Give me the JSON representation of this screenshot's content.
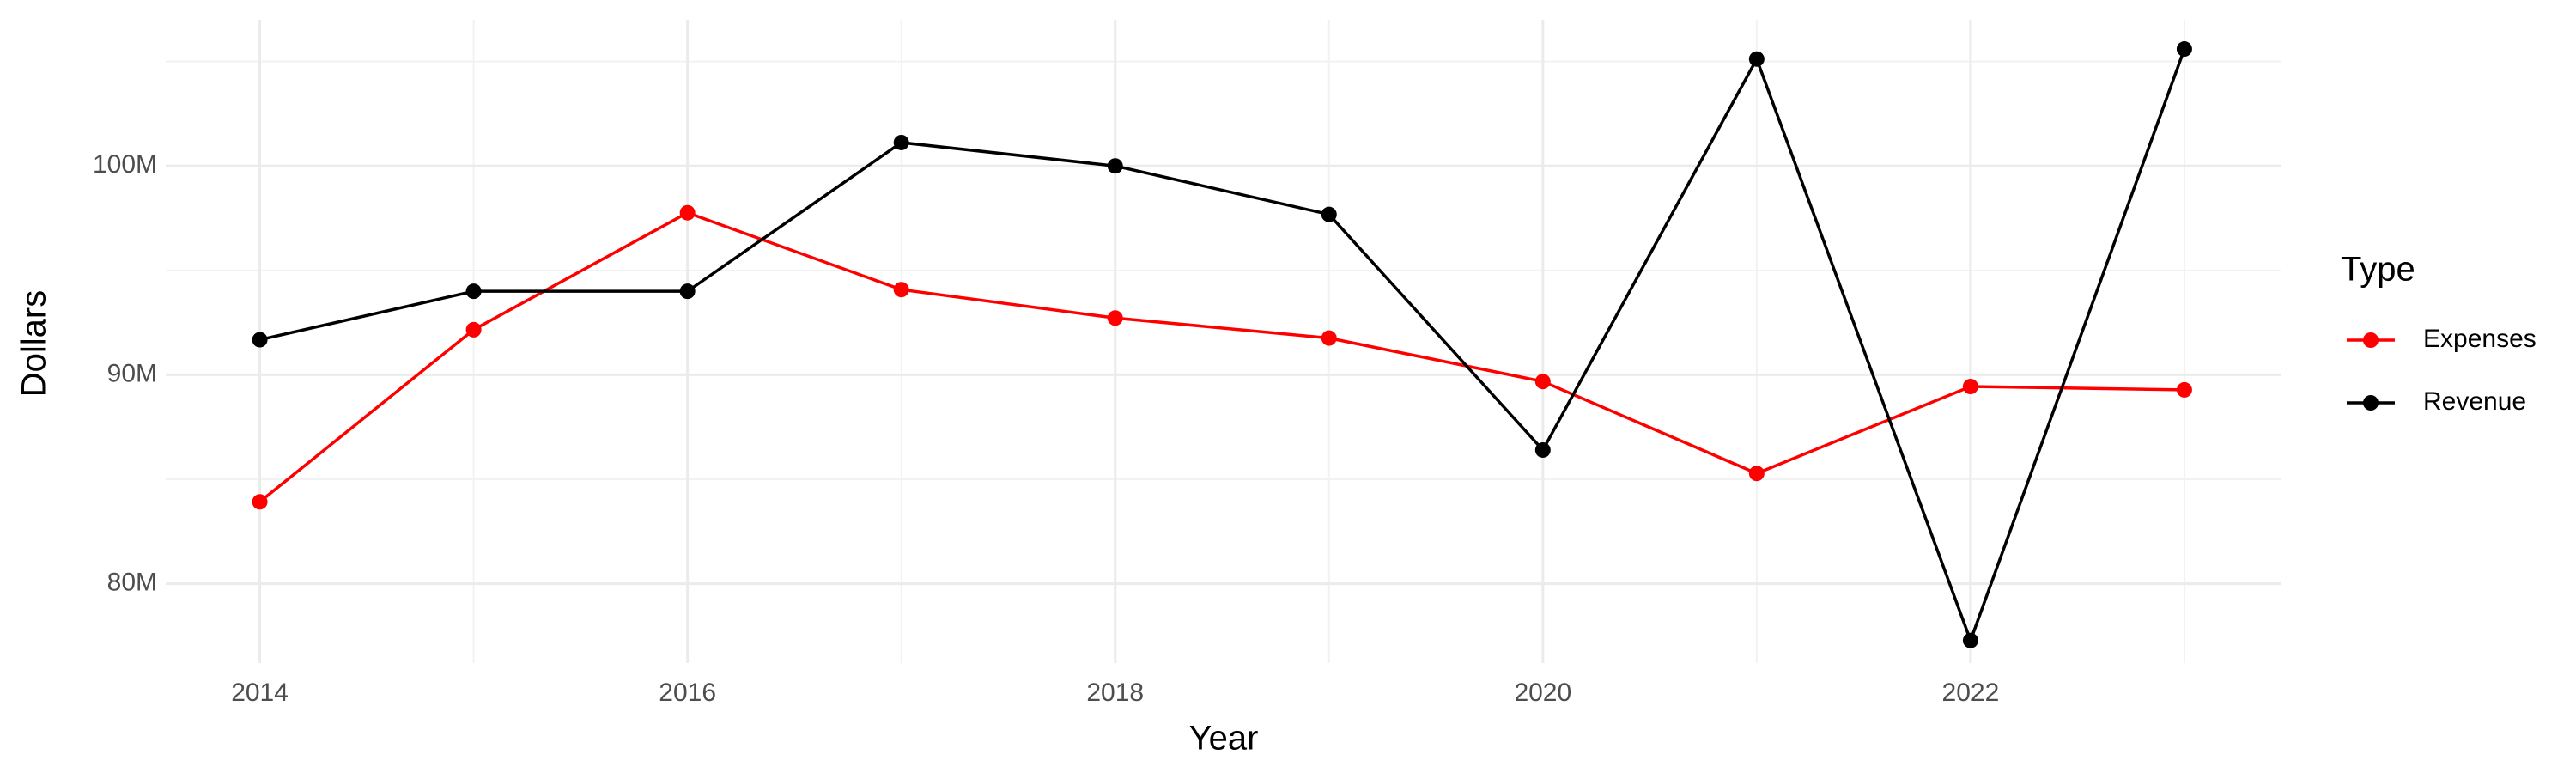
{
  "chart_data": {
    "type": "line",
    "x_label": "Year",
    "y_label": "Dollars",
    "legend_title": "Type",
    "legend": "right",
    "grid": true,
    "x": [
      2014,
      2015,
      2016,
      2017,
      2018,
      2019,
      2020,
      2021,
      2022,
      2023
    ],
    "xlim": [
      2013.56,
      2023.45
    ],
    "xticks": [
      2014,
      2016,
      2018,
      2020,
      2022
    ],
    "ylim": [
      76200000,
      107000000
    ],
    "yticks": [
      {
        "value": 80000000,
        "label": "80M"
      },
      {
        "value": 90000000,
        "label": "90M"
      },
      {
        "value": 100000000,
        "label": "100M"
      }
    ],
    "series": [
      {
        "name": "Expenses",
        "color": "#ff0000",
        "values": [
          83920000,
          92160000,
          97760000,
          94080000,
          92720000,
          91760000,
          89680000,
          85280000,
          89440000,
          89280000
        ]
      },
      {
        "name": "Revenue",
        "color": "#000000",
        "values": [
          91680000,
          94000000,
          94000000,
          101120000,
          100000000,
          97680000,
          86400000,
          105120000,
          77280000,
          105600000
        ]
      }
    ]
  }
}
